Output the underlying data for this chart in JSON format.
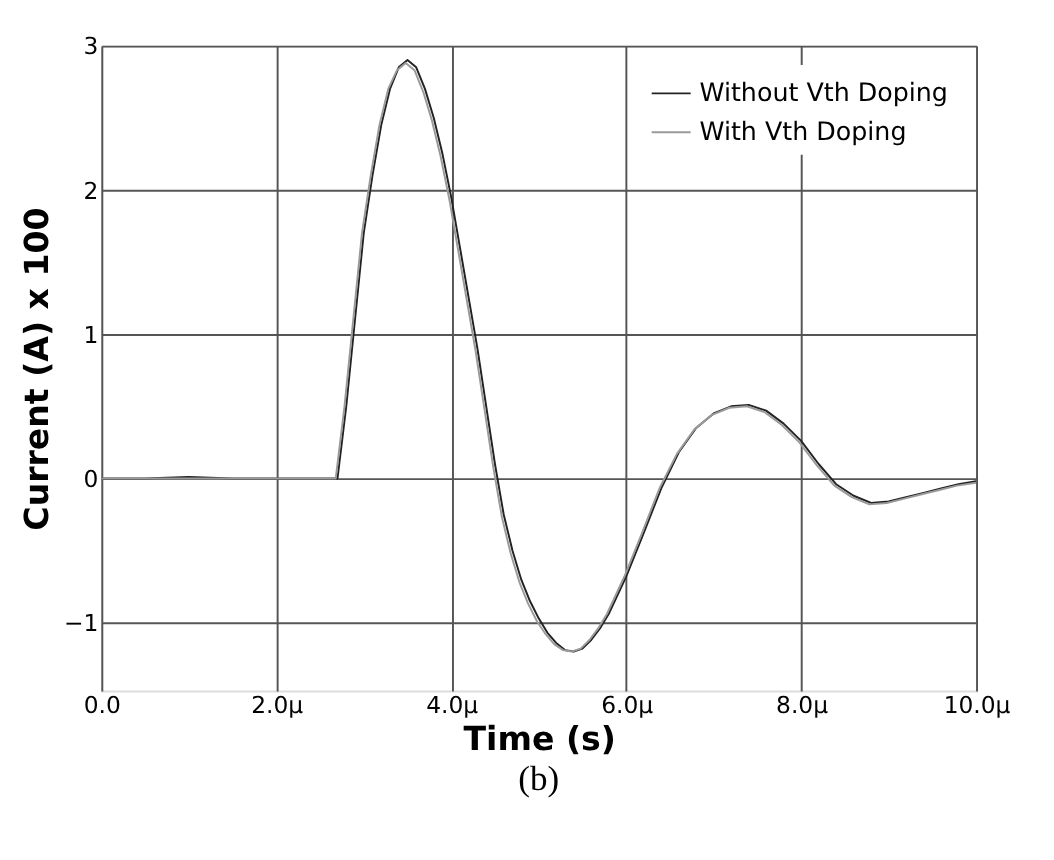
{
  "chart_data": {
    "type": "line",
    "xlabel": "Time (s)",
    "ylabel": "Current (A) x 100",
    "annotations": [
      "(b)"
    ],
    "xlim": [
      0,
      10
    ],
    "xticks": [
      {
        "value": 0,
        "label": "0.0"
      },
      {
        "value": 2,
        "label": "2.0µ"
      },
      {
        "value": 4,
        "label": "4.0µ"
      },
      {
        "value": 6,
        "label": "6.0µ"
      },
      {
        "value": 8,
        "label": "8.0µ"
      },
      {
        "value": 10,
        "label": "10.0µ"
      }
    ],
    "ylim": [
      -1.47,
      3
    ],
    "yticks": [
      -1,
      0,
      1,
      2,
      3
    ],
    "grid": true,
    "legend": "top right",
    "line_style": "solid",
    "marker": "none",
    "series": [
      {
        "name": "Without Vth Doping",
        "color": "#222222",
        "x": [
          0,
          0.5,
          1.0,
          1.5,
          2.0,
          2.5,
          2.7,
          2.8,
          2.9,
          3.0,
          3.1,
          3.2,
          3.3,
          3.4,
          3.5,
          3.6,
          3.7,
          3.8,
          3.9,
          4.0,
          4.1,
          4.2,
          4.3,
          4.4,
          4.5,
          4.6,
          4.7,
          4.8,
          4.9,
          5.0,
          5.1,
          5.2,
          5.3,
          5.4,
          5.5,
          5.6,
          5.7,
          5.8,
          6.0,
          6.2,
          6.4,
          6.6,
          6.8,
          7.0,
          7.2,
          7.4,
          7.6,
          7.8,
          8.0,
          8.2,
          8.4,
          8.6,
          8.8,
          9.0,
          9.2,
          9.4,
          9.6,
          9.8,
          10.0
        ],
        "values": [
          0,
          0,
          0.01,
          0,
          0,
          0,
          0,
          0.5,
          1.1,
          1.7,
          2.1,
          2.45,
          2.7,
          2.85,
          2.9,
          2.85,
          2.7,
          2.5,
          2.25,
          1.95,
          1.6,
          1.25,
          0.9,
          0.5,
          0.1,
          -0.25,
          -0.5,
          -0.7,
          -0.85,
          -0.97,
          -1.07,
          -1.14,
          -1.19,
          -1.2,
          -1.18,
          -1.12,
          -1.04,
          -0.94,
          -0.68,
          -0.38,
          -0.07,
          0.18,
          0.35,
          0.45,
          0.5,
          0.51,
          0.47,
          0.38,
          0.26,
          0.1,
          -0.04,
          -0.12,
          -0.17,
          -0.16,
          -0.13,
          -0.1,
          -0.07,
          -0.04,
          -0.02
        ]
      },
      {
        "name": "With Vth Doping",
        "color": "#9a9a9a",
        "x": [
          0,
          0.5,
          1.0,
          1.5,
          2.0,
          2.5,
          2.68,
          2.78,
          2.88,
          2.98,
          3.08,
          3.18,
          3.28,
          3.38,
          3.48,
          3.58,
          3.68,
          3.78,
          3.88,
          3.98,
          4.08,
          4.18,
          4.28,
          4.38,
          4.48,
          4.58,
          4.68,
          4.78,
          4.88,
          4.98,
          5.08,
          5.18,
          5.28,
          5.38,
          5.48,
          5.58,
          5.68,
          5.78,
          5.98,
          6.18,
          6.38,
          6.58,
          6.78,
          6.98,
          7.18,
          7.38,
          7.58,
          7.78,
          7.98,
          8.18,
          8.38,
          8.58,
          8.78,
          8.98,
          9.18,
          9.38,
          9.58,
          9.78,
          10.0
        ],
        "values": [
          0,
          0,
          0,
          0,
          0,
          0,
          0,
          0.5,
          1.1,
          1.7,
          2.1,
          2.45,
          2.7,
          2.83,
          2.88,
          2.83,
          2.68,
          2.48,
          2.23,
          1.93,
          1.58,
          1.23,
          0.88,
          0.48,
          0.08,
          -0.27,
          -0.52,
          -0.72,
          -0.87,
          -0.99,
          -1.08,
          -1.15,
          -1.19,
          -1.2,
          -1.18,
          -1.12,
          -1.04,
          -0.94,
          -0.68,
          -0.38,
          -0.07,
          0.17,
          0.34,
          0.44,
          0.49,
          0.5,
          0.46,
          0.37,
          0.25,
          0.09,
          -0.05,
          -0.13,
          -0.18,
          -0.17,
          -0.14,
          -0.11,
          -0.08,
          -0.05,
          -0.03
        ]
      }
    ]
  }
}
